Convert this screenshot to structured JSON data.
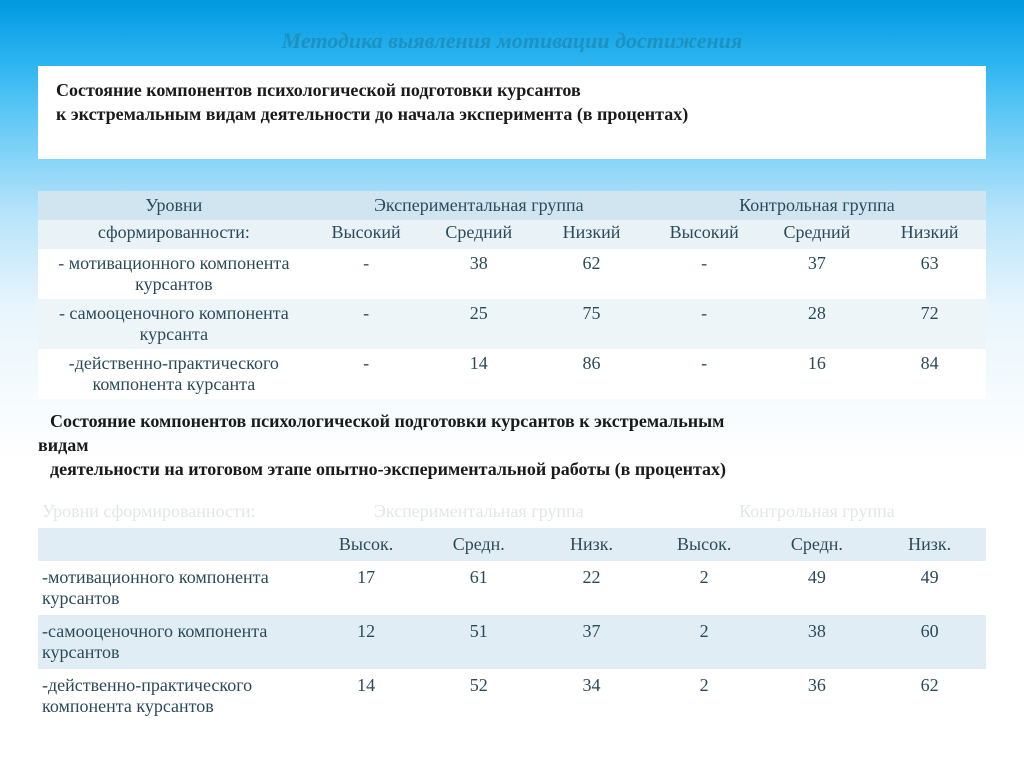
{
  "title": "Методика выявления мотивации достижения",
  "subtitle_line1": "Состояние компонентов психологической подготовки  курсантов",
  "subtitle_line2": " к экстремальным видам деятельности до начала эксперимента (в процентах)",
  "table1": {
    "type": "table",
    "header_left_line1": "Уровни",
    "header_left_line2": "сформированности:",
    "group_exp": "Экспериментальная группа",
    "group_ctrl": "Контрольная группа",
    "sub_cols": [
      "Высокий",
      "Средний",
      "Низкий",
      "Высокий",
      "Средний",
      "Низкий"
    ],
    "rows": [
      {
        "label": "- мотивационного компонента курсантов",
        "vals": [
          "-",
          "38",
          "62",
          "-",
          "37",
          "63"
        ]
      },
      {
        "label": "- самооценочного компонента курсанта",
        "vals": [
          "-",
          "25",
          "75",
          "-",
          "28",
          "72"
        ]
      },
      {
        "label": "-действенно-практического компонента курсанта",
        "vals": [
          "-",
          "14",
          "86",
          "-",
          "16",
          "84"
        ]
      }
    ],
    "header_bg": "#d0e5f0",
    "alt_bg": "#eef5f9",
    "text_color": "#2a4a5a",
    "fontsize": 18
  },
  "mid_caption": {
    "line1": "Состояние компонентов психологической подготовки  курсантов к экстремальным",
    "line2": "видам",
    "line3": "деятельности на итоговом этапе опытно-экспериментальной работы (в процентах)"
  },
  "table2": {
    "type": "table",
    "faded_left": "Уровни сформированности:",
    "faded_mid": "Экспериментальная группа",
    "faded_right": "Контрольная группа",
    "sub_cols": [
      "Высок.",
      "Средн.",
      "Низк.",
      "Высок.",
      "Средн.",
      "Низк."
    ],
    "rows": [
      {
        "label": " -мотивационного   компонента курсантов",
        "vals": [
          "17",
          "61",
          "22",
          "2",
          "49",
          "49"
        ]
      },
      {
        "label": "-самооценочного компонента курсантов",
        "vals": [
          "12",
          "51",
          "37",
          "2",
          "38",
          "60"
        ]
      },
      {
        "label": "-действенно-практического компонента курсантов",
        "vals": [
          "14",
          "52",
          "34",
          "2",
          "36",
          "62"
        ]
      }
    ],
    "sub_bg": "#e1edf4",
    "text_color": "#2a4a5a",
    "fontsize": 18
  },
  "colors": {
    "title_color": "#1d91c0",
    "bg_gradient_top": "#0099e0",
    "bg_gradient_bottom": "#ffffff"
  }
}
